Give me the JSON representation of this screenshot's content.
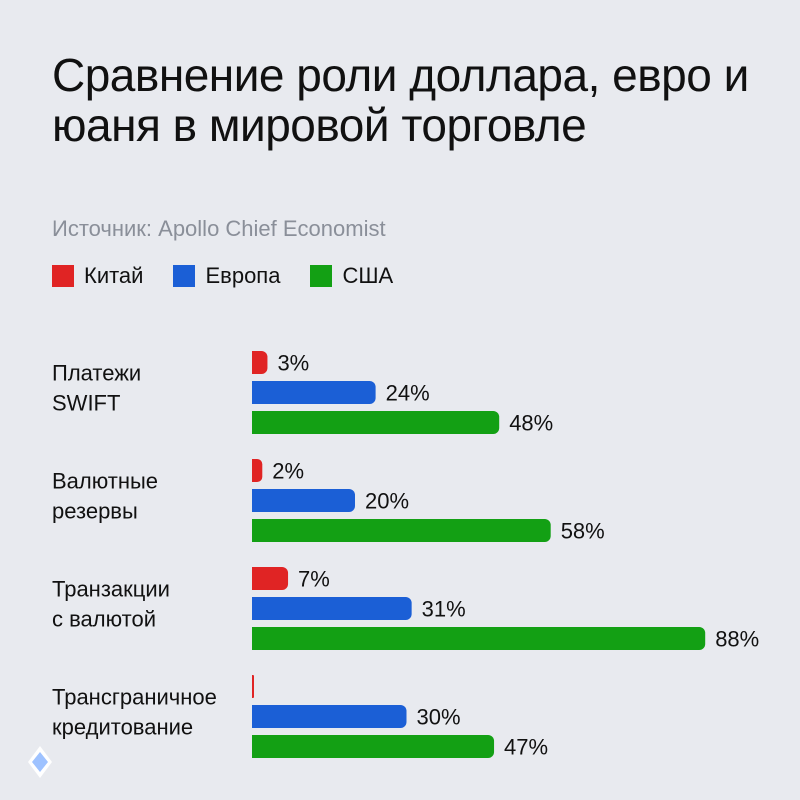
{
  "title": "Сравнение роли доллара, евро и юаня в мировой торговле",
  "source": "Источник: Apollo Chief Economist",
  "colors": {
    "china": "#e02424",
    "europe": "#1b5fd6",
    "usa": "#13a014",
    "background": "#e8eaef"
  },
  "chart_data": {
    "type": "bar",
    "orientation": "horizontal",
    "categories": [
      [
        "Платежи",
        "SWIFT"
      ],
      [
        "Валютные",
        "резервы"
      ],
      [
        "Транзакции",
        "с валютой"
      ],
      [
        "Трансграничное",
        "кредитование"
      ]
    ],
    "series": [
      {
        "name": "Китай",
        "color": "#e02424",
        "values": [
          3,
          2,
          7,
          0
        ],
        "labels": [
          "3%",
          "2%",
          "7%",
          ""
        ]
      },
      {
        "name": "Европа",
        "color": "#1b5fd6",
        "values": [
          24,
          20,
          31,
          30
        ],
        "labels": [
          "24%",
          "20%",
          "31%",
          "30%"
        ]
      },
      {
        "name": "США",
        "color": "#13a014",
        "values": [
          48,
          58,
          88,
          47
        ],
        "labels": [
          "48%",
          "58%",
          "88%",
          "47%"
        ]
      }
    ],
    "xlim": [
      0,
      100
    ],
    "grid": false,
    "legend": "top-left",
    "value_unit": "%"
  }
}
